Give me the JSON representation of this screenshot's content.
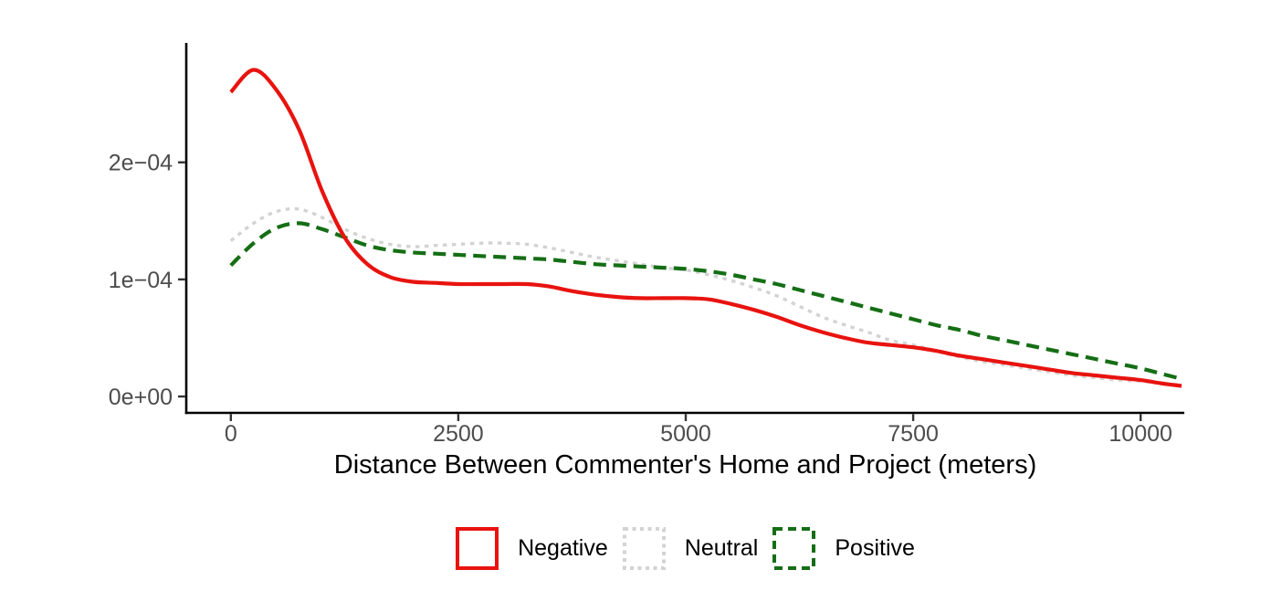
{
  "figure": {
    "background_color": "#ffffff",
    "axis_line_color": "#000000",
    "tick_label_color": "#4d4d4d",
    "title_color": "#000000"
  },
  "chart_data": {
    "type": "line",
    "subtype": "kernel-density",
    "title": "",
    "xlabel": "Distance Between Commenter's Home and Project (meters)",
    "ylabel": "",
    "xlim": [
      -490,
      10480
    ],
    "ylim": [
      -1.4e-05,
      0.000302
    ],
    "grid": false,
    "legend_position": "bottom-center",
    "x_ticks": {
      "values": [
        0,
        2500,
        5000,
        7500,
        10000
      ],
      "labels": [
        "0",
        "2500",
        "5000",
        "7500",
        "10000"
      ]
    },
    "y_ticks": {
      "values": [
        0,
        0.0001,
        0.0002
      ],
      "labels": [
        "0e+00",
        "1e−04",
        "2e−04"
      ]
    },
    "x": [
      0,
      250,
      500,
      750,
      1000,
      1250,
      1500,
      1750,
      2000,
      2250,
      2500,
      2750,
      3000,
      3250,
      3500,
      3750,
      4000,
      4250,
      4500,
      4750,
      5000,
      5250,
      5500,
      5750,
      6000,
      6250,
      6500,
      6750,
      7000,
      7250,
      7500,
      7750,
      8000,
      8250,
      8500,
      8750,
      9000,
      9250,
      9500,
      9750,
      10000,
      10250,
      10450
    ],
    "series": [
      {
        "name": "Negative",
        "color": "#e8130f",
        "linestyle": "solid",
        "values": [
          0.00026,
          0.000279,
          0.000262,
          0.000228,
          0.000176,
          0.000136,
          0.000113,
          0.000102,
          9.8e-05,
          9.7e-05,
          9.6e-05,
          9.6e-05,
          9.6e-05,
          9.6e-05,
          9.4e-05,
          9e-05,
          8.7e-05,
          8.5e-05,
          8.4e-05,
          8.4e-05,
          8.4e-05,
          8.3e-05,
          7.9e-05,
          7.4e-05,
          6.8e-05,
          6.1e-05,
          5.5e-05,
          5e-05,
          4.6e-05,
          4.4e-05,
          4.2e-05,
          3.9e-05,
          3.5e-05,
          3.2e-05,
          2.9e-05,
          2.6e-05,
          2.3e-05,
          2e-05,
          1.8e-05,
          1.6e-05,
          1.4e-05,
          1.1e-05,
          9e-06
        ]
      },
      {
        "name": "Neutral",
        "color": "#d3d3d3",
        "linestyle": "dotted",
        "values": [
          0.000133,
          0.000148,
          0.000158,
          0.00016,
          0.000153,
          0.000143,
          0.000135,
          0.00013,
          0.000128,
          0.000129,
          0.00013,
          0.000131,
          0.000131,
          0.00013,
          0.000127,
          0.000123,
          0.000119,
          0.000116,
          0.000113,
          0.00011,
          0.000108,
          0.000104,
          9.9e-05,
          9.3e-05,
          8.6e-05,
          7.7e-05,
          6.8e-05,
          6.1e-05,
          5.5e-05,
          4.8e-05,
          4.4e-05,
          3.9e-05,
          3.4e-05,
          3e-05,
          2.7e-05,
          2.4e-05,
          2.1e-05,
          1.8e-05,
          1.6e-05,
          1.4e-05,
          1.3e-05,
          1.1e-05,
          1e-05
        ]
      },
      {
        "name": "Positive",
        "color": "#156e15",
        "linestyle": "dashed",
        "values": [
          0.000112,
          0.000131,
          0.000144,
          0.000148,
          0.000143,
          0.000136,
          0.000129,
          0.000125,
          0.000123,
          0.000122,
          0.000121,
          0.00012,
          0.000119,
          0.000118,
          0.000117,
          0.000115,
          0.000113,
          0.000112,
          0.000111,
          0.00011,
          0.000109,
          0.000107,
          0.000104,
          0.0001,
          9.6e-05,
          9.1e-05,
          8.6e-05,
          8.1e-05,
          7.6e-05,
          7.1e-05,
          6.6e-05,
          6.1e-05,
          5.7e-05,
          5.2e-05,
          4.8e-05,
          4.4e-05,
          4e-05,
          3.6e-05,
          3.2e-05,
          2.8e-05,
          2.4e-05,
          1.9e-05,
          1.5e-05
        ]
      }
    ]
  }
}
